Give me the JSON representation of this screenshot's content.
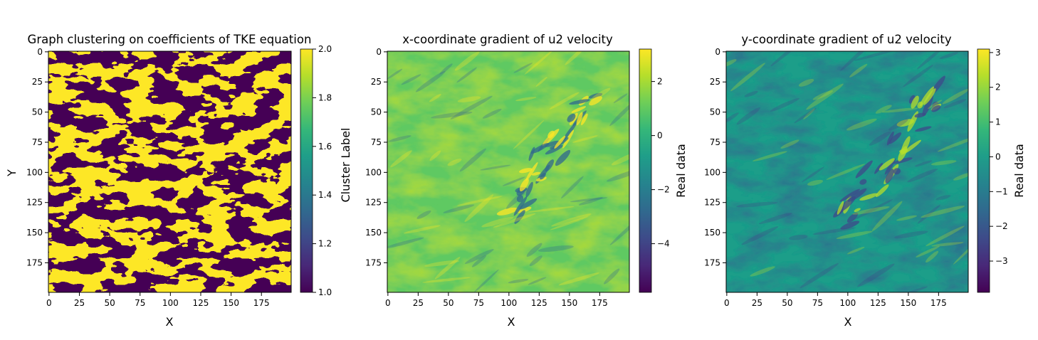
{
  "chart_data": [
    {
      "type": "heatmap",
      "title": "Graph clustering on coefficients of TKE equation",
      "xlabel": "X",
      "ylabel": "Y",
      "xlim": [
        0,
        199
      ],
      "ylim": [
        199,
        0
      ],
      "xticks": [
        "0",
        "25",
        "50",
        "75",
        "100",
        "125",
        "150",
        "175"
      ],
      "yticks": [
        "0",
        "25",
        "50",
        "75",
        "100",
        "125",
        "150",
        "175"
      ],
      "colormap": "viridis",
      "colorbar": {
        "label": "Cluster Label",
        "range": [
          1.0,
          2.0
        ],
        "ticks": [
          "1.0",
          "1.2",
          "1.4",
          "1.6",
          "1.8",
          "2.0"
        ]
      },
      "field": "binary cluster labels (1 = dark purple, 2 = yellow), streaky diagonal pattern"
    },
    {
      "type": "heatmap",
      "title": "x-coordinate gradient of u2 velocity",
      "xlabel": "X",
      "ylabel": "",
      "xlim": [
        0,
        199
      ],
      "ylim": [
        199,
        0
      ],
      "xticks": [
        "0",
        "25",
        "50",
        "75",
        "100",
        "125",
        "150",
        "175"
      ],
      "yticks": [
        "0",
        "25",
        "50",
        "75",
        "100",
        "125",
        "150",
        "175"
      ],
      "colormap": "viridis",
      "colorbar": {
        "label": "Real data",
        "range": [
          -5.8,
          3.2
        ],
        "ticks": [
          "2",
          "0",
          "−2",
          "−4"
        ]
      },
      "field": "continuous gradient field, mostly near 0, sharp features along a diagonal from (100,130) to (170,60)"
    },
    {
      "type": "heatmap",
      "title": "y-coordinate gradient of u2 velocity",
      "xlabel": "X",
      "ylabel": "",
      "xlim": [
        0,
        199
      ],
      "ylim": [
        199,
        0
      ],
      "xticks": [
        "0",
        "25",
        "50",
        "75",
        "100",
        "125",
        "150",
        "175"
      ],
      "yticks": [
        "0",
        "25",
        "50",
        "75",
        "100",
        "125",
        "150",
        "175"
      ],
      "colormap": "viridis",
      "colorbar": {
        "label": "Real data",
        "range": [
          -3.9,
          3.1
        ],
        "ticks": [
          "3",
          "2",
          "1",
          "0",
          "−1",
          "−2",
          "−3"
        ]
      },
      "field": "continuous gradient field, mostly near 0, sharp features along a diagonal from (100,130) to (170,60)"
    }
  ],
  "colors": {
    "viridis": [
      "#440154",
      "#482878",
      "#3e4a89",
      "#31688e",
      "#26828e",
      "#1f9e89",
      "#35b779",
      "#6ece58",
      "#b5de2b",
      "#fde725"
    ]
  }
}
